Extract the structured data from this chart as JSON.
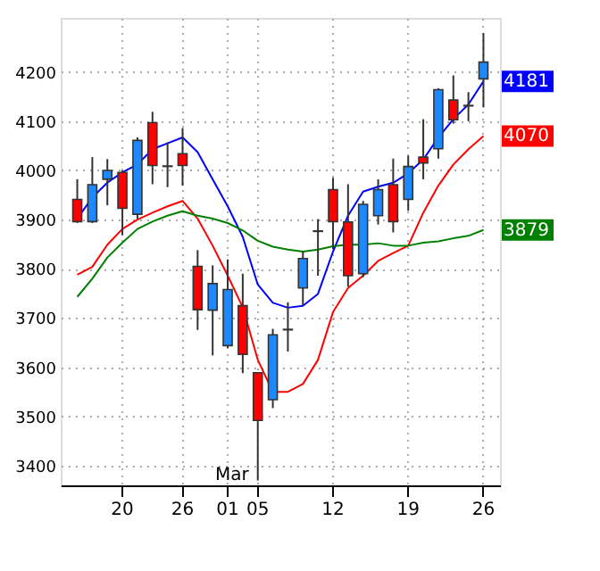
{
  "chart_data": {
    "type": "candlestick",
    "categories": [
      null,
      null,
      null,
      "20",
      null,
      null,
      null,
      "26",
      null,
      null,
      "01",
      null,
      "05",
      null,
      null,
      null,
      null,
      "12",
      null,
      null,
      null,
      null,
      "19",
      null,
      null,
      null,
      null,
      "26"
    ],
    "ohlc": [
      [
        3941,
        3982,
        3893,
        3896
      ],
      [
        3896,
        4027,
        3893,
        3971
      ],
      [
        3982,
        4023,
        3929,
        4000
      ],
      [
        3996,
        4000,
        3868,
        3923
      ],
      [
        3911,
        4067,
        3902,
        4061
      ],
      [
        4097,
        4119,
        3972,
        4010
      ],
      [
        4008,
        4057,
        3966,
        4009
      ],
      [
        4034,
        4086,
        3969,
        4010
      ],
      [
        3805,
        3838,
        3676,
        3717
      ],
      [
        3716,
        3807,
        3624,
        3770
      ],
      [
        3644,
        3819,
        3639,
        3758
      ],
      [
        3725,
        3790,
        3588,
        3626
      ],
      [
        3589,
        3590,
        3370,
        3492
      ],
      [
        3534,
        3678,
        3517,
        3666
      ],
      [
        3676,
        3732,
        3632,
        3677
      ],
      [
        3761,
        3835,
        3725,
        3821
      ],
      [
        3877,
        3901,
        3786,
        3876
      ],
      [
        3961,
        3985,
        3840,
        3896
      ],
      [
        3895,
        3972,
        3764,
        3786
      ],
      [
        3790,
        3938,
        3783,
        3931
      ],
      [
        3908,
        3982,
        3890,
        3961
      ],
      [
        3971,
        4024,
        3874,
        3896
      ],
      [
        3941,
        4030,
        3918,
        4008
      ],
      [
        4027,
        4104,
        3982,
        4015
      ],
      [
        4044,
        4167,
        4024,
        4164
      ],
      [
        4143,
        4193,
        4095,
        4103
      ],
      [
        4131,
        4159,
        4100,
        4132
      ],
      [
        4186,
        4279,
        4128,
        4220
      ]
    ],
    "colors": [
      "#ff0000",
      "#1e88ff",
      "#1e88ff",
      "#ff0000",
      "#1e88ff",
      "#ff0000",
      "#1e88ff",
      "#ff0000",
      "#ff0000",
      "#1e88ff",
      "#1e88ff",
      "#ff0000",
      "#ff0000",
      "#1e88ff",
      "#1e88ff",
      "#1e88ff",
      "#ff0000",
      "#ff0000",
      "#ff0000",
      "#1e88ff",
      "#1e88ff",
      "#ff0000",
      "#1e88ff",
      "#ff0000",
      "#1e88ff",
      "#ff0000",
      "#1e88ff",
      "#1e88ff"
    ],
    "series": [
      {
        "type": "line",
        "color": "#0000ff",
        "values": [
          3902,
          3945,
          3975,
          3996,
          4012,
          4043,
          4055,
          4067,
          4037,
          3982,
          3927,
          3865,
          3768,
          3731,
          3721,
          3725,
          3749,
          3835,
          3908,
          3957,
          3967,
          3975,
          3994,
          4022,
          4067,
          4104,
          4134,
          4181
        ],
        "value_labels": [
          null,
          null,
          null,
          null,
          null,
          null,
          null,
          null,
          null,
          null,
          null,
          null,
          null,
          null,
          null,
          null,
          null,
          null,
          null,
          null,
          null,
          null,
          null,
          null,
          null,
          null,
          null,
          "4181"
        ]
      },
      {
        "type": "line",
        "color": "#ff0000",
        "values": [
          3788,
          3804,
          3849,
          3881,
          3900,
          3914,
          3927,
          3938,
          3902,
          3847,
          3786,
          3722,
          3615,
          3550,
          3550,
          3566,
          3615,
          3712,
          3761,
          3786,
          3816,
          3832,
          3847,
          3914,
          3969,
          4012,
          4043,
          4070
        ],
        "value_labels": [
          null,
          null,
          null,
          null,
          null,
          null,
          null,
          null,
          null,
          null,
          null,
          null,
          null,
          null,
          null,
          null,
          null,
          null,
          null,
          null,
          null,
          null,
          null,
          null,
          null,
          null,
          null,
          "4070"
        ]
      },
      {
        "type": "line",
        "color": "#008000",
        "values": [
          3743,
          3780,
          3823,
          3853,
          3881,
          3896,
          3908,
          3917,
          3908,
          3902,
          3893,
          3878,
          3857,
          3845,
          3839,
          3835,
          3839,
          3846,
          3849,
          3849,
          3852,
          3847,
          3847,
          3853,
          3856,
          3862,
          3867,
          3879
        ],
        "value_labels": [
          null,
          null,
          null,
          null,
          null,
          null,
          null,
          null,
          null,
          null,
          null,
          null,
          null,
          null,
          null,
          null,
          null,
          null,
          null,
          null,
          null,
          null,
          null,
          null,
          null,
          null,
          null,
          "3879"
        ]
      }
    ],
    "ylim": [
      3360,
      4310
    ],
    "yticks": [
      3400,
      3500,
      3600,
      3700,
      3800,
      3900,
      4000,
      4100,
      4200
    ],
    "annotations": [
      "Mar"
    ],
    "grid": true,
    "legend": false,
    "marker": "none",
    "line_style": "solid"
  }
}
